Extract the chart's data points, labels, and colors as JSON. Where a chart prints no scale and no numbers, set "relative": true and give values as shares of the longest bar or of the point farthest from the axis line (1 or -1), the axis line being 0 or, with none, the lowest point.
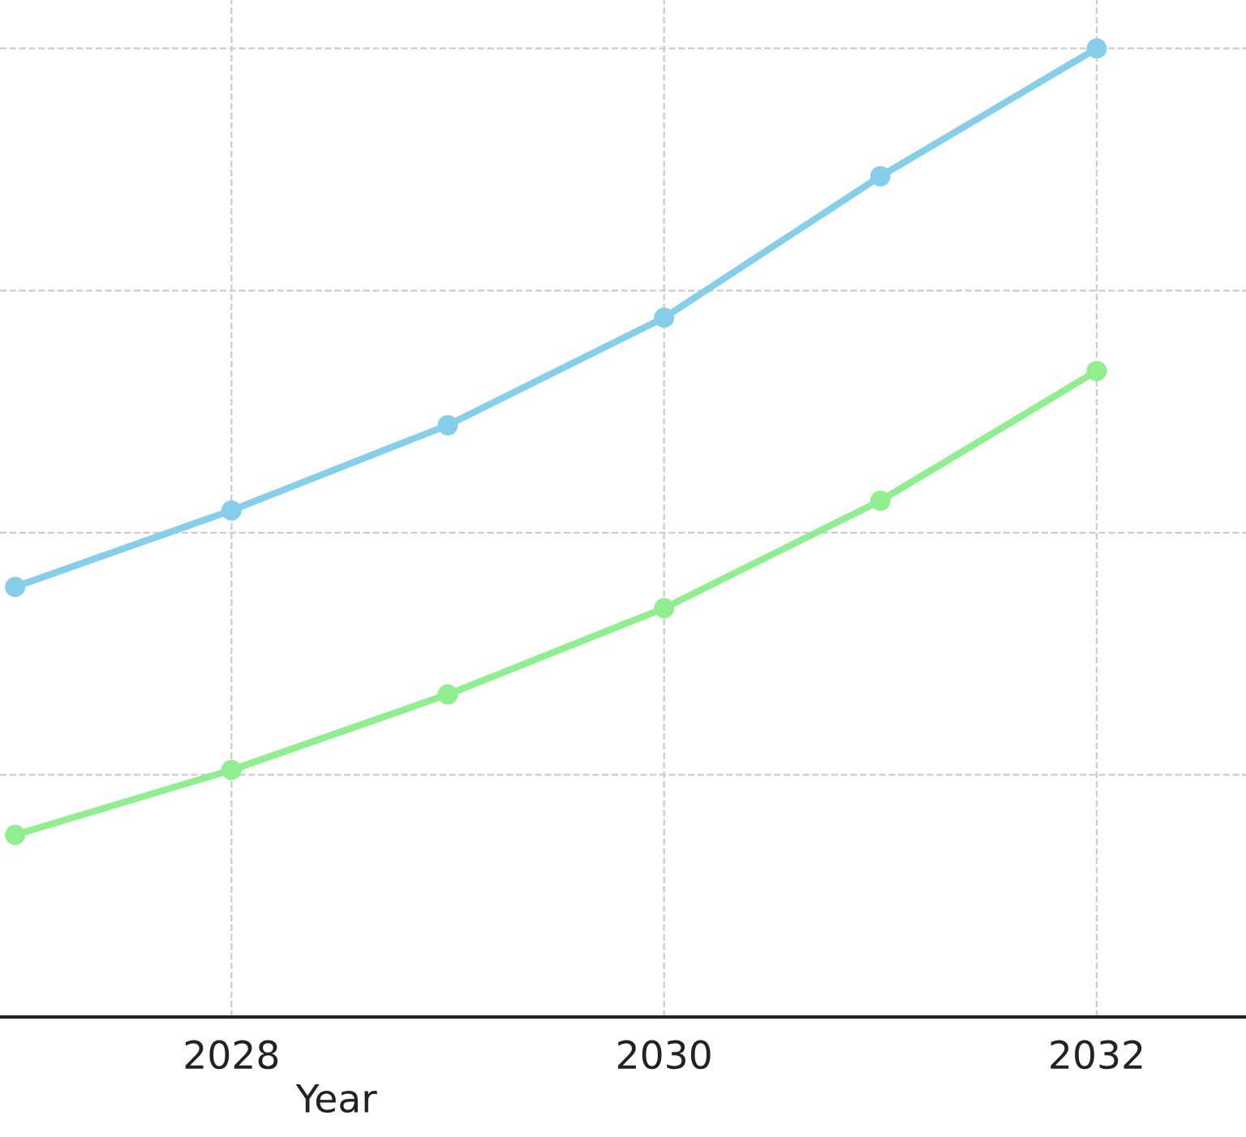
{
  "chart_data": {
    "type": "line",
    "xlabel": "Year",
    "relative": true,
    "x": [
      2027,
      2028,
      2029,
      2030,
      2031,
      2032
    ],
    "xlim": [
      2026.93,
      2032.69
    ],
    "xticks": [
      2028,
      2030,
      2032
    ],
    "series": [
      {
        "color": "#87ceeb",
        "values": [
          0.444,
          0.523,
          0.611,
          0.722,
          0.868,
          1
        ]
      },
      {
        "color": "#90ee90",
        "values": [
          0.188,
          0.255,
          0.333,
          0.422,
          0.533,
          0.667
        ]
      }
    ],
    "marker": "circle",
    "line_style": "solid",
    "grid": true
  }
}
